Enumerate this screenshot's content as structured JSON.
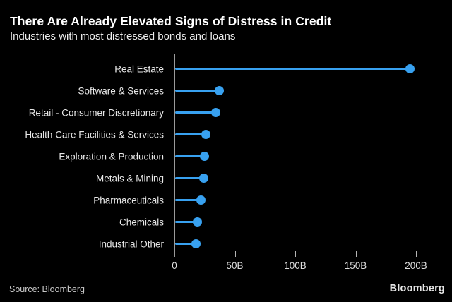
{
  "header": {
    "title": "There Are Already Elevated Signs of Distress in Credit",
    "subtitle": "Industries with most distressed bonds and loans"
  },
  "footer": {
    "source": "Source: Bloomberg",
    "brand": "Bloomberg"
  },
  "colors": {
    "background": "#000000",
    "accent_blue": "#38a1f0",
    "axis_gray": "#9a9a9a",
    "label_gray": "#e8e8e8"
  },
  "chart_data": {
    "type": "bar",
    "style": "lollipop",
    "orientation": "horizontal",
    "title": "There Are Already Elevated Signs of Distress in Credit",
    "subtitle": "Industries with most distressed bonds and loans",
    "categories": [
      "Real Estate",
      "Software & Services",
      "Retail - Consumer Discretionary",
      "Health Care Facilities & Services",
      "Exploration & Production",
      "Metals & Mining",
      "Pharmaceuticals",
      "Chemicals",
      "Industrial Other"
    ],
    "values": [
      195,
      37,
      34,
      26,
      25,
      24,
      22,
      19,
      18
    ],
    "unit": "B",
    "xlabel": "",
    "ylabel": "",
    "xlim": [
      0,
      205
    ],
    "x_ticks": [
      {
        "value": 0,
        "label": "0"
      },
      {
        "value": 50,
        "label": "50B"
      },
      {
        "value": 100,
        "label": "100B"
      },
      {
        "value": 150,
        "label": "150B"
      },
      {
        "value": 200,
        "label": "200B"
      }
    ],
    "grid": false,
    "legend": false
  }
}
